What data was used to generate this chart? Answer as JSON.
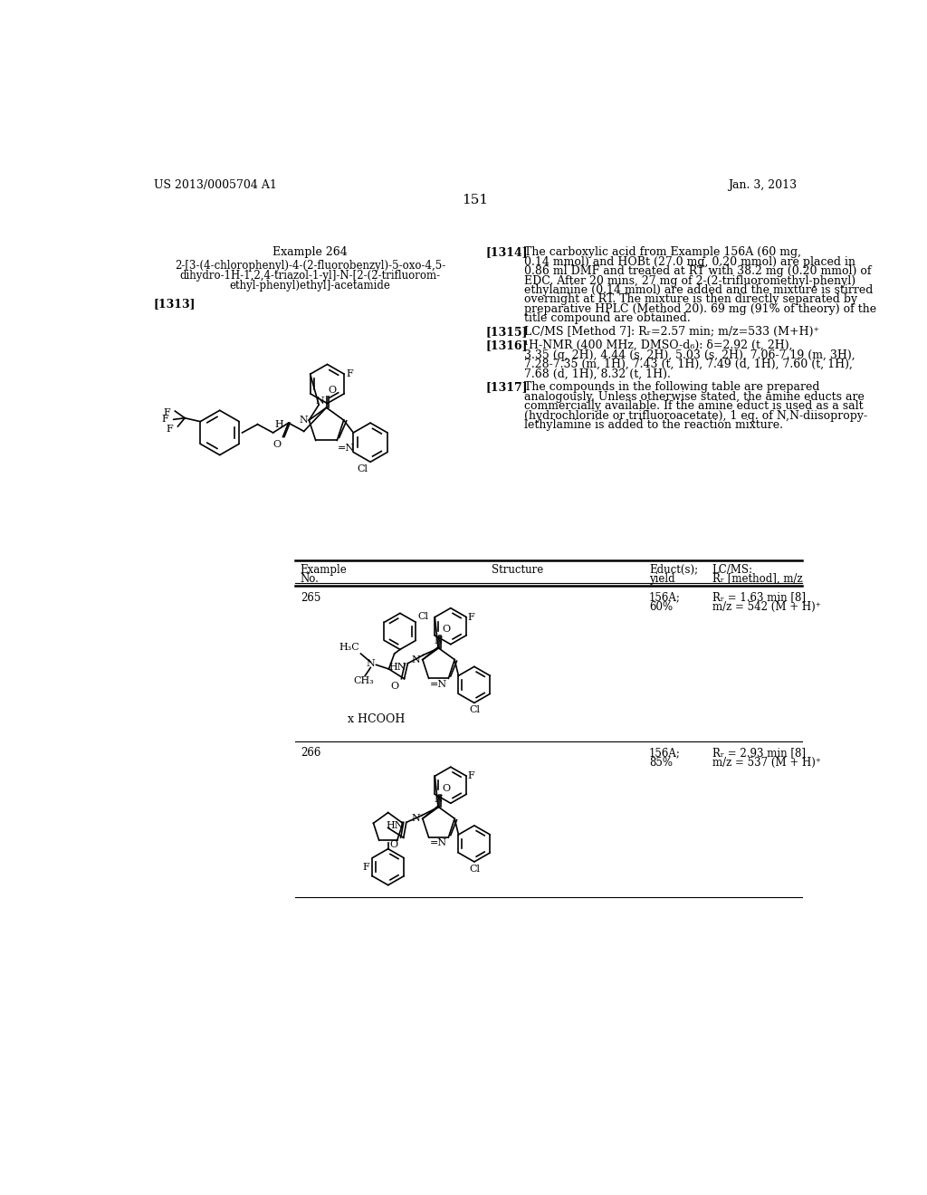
{
  "page_bg": "#ffffff",
  "header_left": "US 2013/0005704 A1",
  "header_right": "Jan. 3, 2013",
  "page_number": "151",
  "example_title": "Example 264",
  "example_name_lines": [
    "2-[3-(4-chlorophenyl)-4-(2-fluorobenzyl)-5-oxo-4,5-",
    "dihydro-1H-1,2,4-triazol-1-yl]-N-[2-(2-trifluorom-",
    "ethyl-phenyl)ethyl]-acetamide"
  ],
  "ref_1313": "[1313]",
  "ref_1314_label": "[1314]",
  "ref_1314_lines": [
    "The carboxylic acid from Example 156A (60 mg,",
    "0.14 mmol) and HOBt (27.0 mg, 0.20 mmol) are placed in",
    "0.86 ml DMF and treated at RT with 38.2 mg (0.20 mmol) of",
    "EDC. After 20 mins, 27 mg of 2-(2-trifluoromethyl-phenyl)",
    "ethylamine (0.14 mmol) are added and the mixture is stirred",
    "overnight at RT. The mixture is then directly separated by",
    "preparative HPLC (Method 20). 69 mg (91% of theory) of the",
    "title compound are obtained."
  ],
  "ref_1315_label": "[1315]",
  "ref_1315_text": "LC/MS [Method 7]: Rᵣ=2.57 min; m/z=533 (M+H)⁺",
  "ref_1316_label": "[1316]",
  "ref_1316_lines": [
    "¹H-NMR (400 MHz, DMSO-d₆): δ=2.92 (t, 2H),",
    "3.35 (q, 2H), 4.44 (s, 2H), 5.03 (s, 2H), 7.06-7.19 (m, 3H),",
    "7.28-7.35 (m, 1H), 7.43 (t, 1H), 7.49 (d, 1H), 7.60 (t, 1H),",
    "7.68 (d, 1H), 8.32 (t, 1H)."
  ],
  "ref_1317_label": "[1317]",
  "ref_1317_lines": [
    "The compounds in the following table are prepared",
    "analogously. Unless otherwise stated, the amine educts are",
    "commercially available. If the amine educt is used as a salt",
    "(hydrochloride or trifluoroacetate), 1 eq. of N,N-diisopropy-",
    "lethylamine is added to the reaction mixture."
  ],
  "ex265_no": "265",
  "ex265_educt1": "156A;",
  "ex265_educt2": "60%",
  "ex265_lcms1": "Rᵣ = 1.63 min [8]",
  "ex265_lcms2": "m/z = 542 (M + H)⁺",
  "ex265_hcooh": "x HCOOH",
  "ex266_no": "266",
  "ex266_educt1": "156A;",
  "ex266_educt2": "85%",
  "ex266_lcms1": "Rᵣ = 2.93 min [8]",
  "ex266_lcms2": "m/z = 537 (M + H)⁺",
  "tbl_col1a": "Example",
  "tbl_col1b": "No.",
  "tbl_col2": "Structure",
  "tbl_col3a": "Educt(s);",
  "tbl_col3b": "yield",
  "tbl_col4a": "LC/MS:",
  "tbl_col4b": "Rᵣ [method], m/z"
}
